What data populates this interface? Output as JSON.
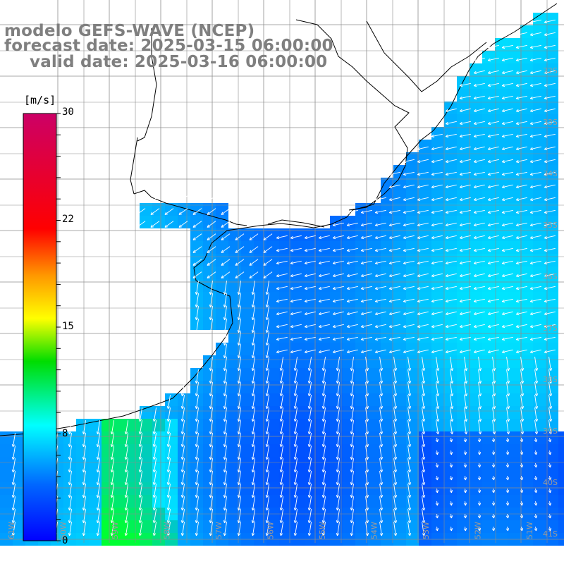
{
  "title": {
    "line1": "modelo GEFS-WAVE (NCEP)",
    "line2": "forecast date: 2025-03-15 06:00:00",
    "line3": "valid date: 2025-03-16 06:00:00"
  },
  "colorbar": {
    "unit": "[m/s]",
    "ticks": [
      "30",
      "22",
      "15",
      "8",
      "0"
    ],
    "range": [
      0,
      30
    ]
  },
  "longitude_labels": [
    "61W",
    "60W",
    "59W",
    "58W",
    "57W",
    "56W",
    "55W",
    "54W",
    "53W",
    "52W",
    "51W"
  ],
  "latitude_labels": [
    "32S",
    "33S",
    "34S",
    "35S",
    "36S",
    "37S",
    "38S",
    "39S",
    "40S",
    "41S"
  ],
  "colors": {
    "land": "#ffffff",
    "grid": "#8c8c8c",
    "coast": "#000000",
    "arrows": "#ffffff",
    "title_text": "#7f7f7f"
  }
}
